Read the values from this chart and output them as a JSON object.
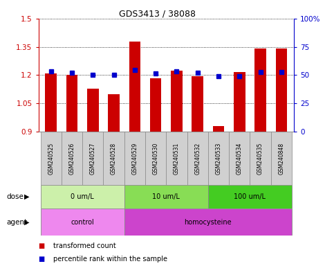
{
  "title": "GDS3413 / 38088",
  "samples": [
    "GSM240525",
    "GSM240526",
    "GSM240527",
    "GSM240528",
    "GSM240529",
    "GSM240530",
    "GSM240531",
    "GSM240532",
    "GSM240533",
    "GSM240534",
    "GSM240535",
    "GSM240848"
  ],
  "red_values": [
    1.21,
    1.2,
    1.13,
    1.1,
    1.38,
    1.185,
    1.225,
    1.195,
    0.93,
    1.215,
    1.34,
    1.34
  ],
  "blue_values": [
    53.5,
    52.0,
    50.5,
    50.5,
    54.5,
    51.5,
    53.5,
    52.0,
    49.0,
    49.0,
    52.5,
    52.5
  ],
  "ymin": 0.9,
  "ymax": 1.5,
  "yticks": [
    0.9,
    1.05,
    1.2,
    1.35,
    1.5
  ],
  "y2min": 0.0,
  "y2max": 100.0,
  "y2ticks": [
    0,
    25,
    50,
    75,
    100
  ],
  "y2ticklabels": [
    "0",
    "25",
    "50",
    "75",
    "100%"
  ],
  "dose_groups": [
    {
      "label": "0 um/L",
      "start": 0,
      "end": 4,
      "color": "#ccf0aa"
    },
    {
      "label": "10 um/L",
      "start": 4,
      "end": 8,
      "color": "#88dd55"
    },
    {
      "label": "100 um/L",
      "start": 8,
      "end": 12,
      "color": "#44cc22"
    }
  ],
  "agent_groups": [
    {
      "label": "control",
      "start": 0,
      "end": 4,
      "color": "#ee88ee"
    },
    {
      "label": "homocysteine",
      "start": 4,
      "end": 12,
      "color": "#cc44cc"
    }
  ],
  "bar_color": "#cc0000",
  "dot_color": "#0000cc",
  "bar_width": 0.55,
  "tick_label_bg": "#d0d0d0",
  "border_color": "#888888"
}
